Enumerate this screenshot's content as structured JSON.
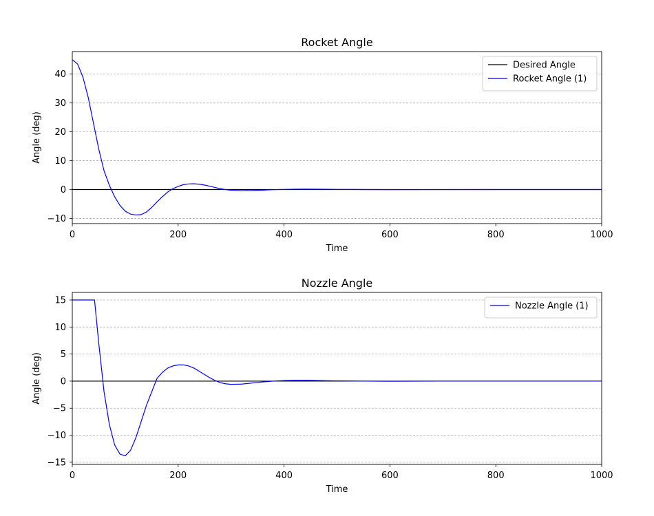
{
  "chart_data": [
    {
      "type": "line",
      "title": "Rocket Angle",
      "xlabel": "Time",
      "ylabel": "Angle (deg)",
      "xlim": [
        0,
        1000
      ],
      "ylim": [
        -11.8,
        47.8
      ],
      "xticks": [
        0,
        200,
        400,
        600,
        800,
        1000
      ],
      "yticks": [
        -10,
        0,
        10,
        20,
        30,
        40
      ],
      "grid": "horizontal dashed",
      "legend_position": "top-right",
      "series": [
        {
          "name": "Desired Angle",
          "color": "#000000",
          "x": [
            0,
            1000
          ],
          "y": [
            0,
            0
          ]
        },
        {
          "name": "Rocket Angle (1)",
          "color": "#0000ff",
          "x": [
            0,
            10,
            20,
            30,
            40,
            50,
            60,
            70,
            80,
            90,
            100,
            110,
            120,
            130,
            140,
            150,
            160,
            170,
            180,
            190,
            200,
            210,
            220,
            230,
            240,
            250,
            260,
            270,
            280,
            290,
            300,
            320,
            340,
            360,
            380,
            400,
            420,
            440,
            460,
            480,
            500,
            550,
            600,
            700,
            800,
            900,
            1000
          ],
          "y": [
            45,
            43.5,
            39,
            32,
            23,
            14,
            6.5,
            1.5,
            -2.5,
            -5.5,
            -7.5,
            -8.5,
            -8.8,
            -8.7,
            -7.8,
            -6.2,
            -4.3,
            -2.5,
            -0.9,
            0.3,
            1.1,
            1.7,
            1.95,
            2.0,
            1.85,
            1.55,
            1.15,
            0.7,
            0.3,
            -0.05,
            -0.25,
            -0.4,
            -0.35,
            -0.2,
            -0.05,
            0.05,
            0.12,
            0.15,
            0.13,
            0.1,
            0.05,
            0.0,
            -0.02,
            -0.01,
            0.0,
            0.0,
            0.0
          ]
        }
      ]
    },
    {
      "type": "line",
      "title": "Nozzle Angle",
      "xlabel": "Time",
      "ylabel": "Angle (deg)",
      "xlim": [
        0,
        1000
      ],
      "ylim": [
        -15.4,
        16.4
      ],
      "xticks": [
        0,
        200,
        400,
        600,
        800,
        1000
      ],
      "yticks": [
        -15,
        -10,
        -5,
        0,
        5,
        10,
        15
      ],
      "grid": "horizontal dashed",
      "legend_position": "top-right",
      "series": [
        {
          "name": "Desired Angle",
          "color": "#000000",
          "legend": false,
          "x": [
            0,
            1000
          ],
          "y": [
            0,
            0
          ]
        },
        {
          "name": "Nozzle Angle (1)",
          "color": "#0000ff",
          "x": [
            0,
            20,
            40,
            42,
            50,
            60,
            70,
            80,
            90,
            100,
            110,
            120,
            130,
            140,
            150,
            160,
            170,
            180,
            190,
            200,
            210,
            220,
            230,
            240,
            250,
            260,
            270,
            280,
            290,
            300,
            320,
            340,
            360,
            380,
            400,
            420,
            440,
            460,
            480,
            500,
            550,
            600,
            700,
            800,
            900,
            1000
          ],
          "y": [
            15,
            15,
            15,
            15,
            7,
            -2,
            -8,
            -11.8,
            -13.5,
            -13.8,
            -12.8,
            -10.5,
            -7.5,
            -4.5,
            -2.0,
            0.5,
            1.6,
            2.4,
            2.8,
            3.0,
            3.0,
            2.8,
            2.4,
            1.8,
            1.2,
            0.6,
            0.1,
            -0.3,
            -0.5,
            -0.6,
            -0.55,
            -0.35,
            -0.15,
            0.0,
            0.1,
            0.15,
            0.15,
            0.12,
            0.08,
            0.05,
            0.0,
            -0.02,
            0.0,
            0.0,
            0.0,
            0.0
          ]
        }
      ]
    }
  ]
}
